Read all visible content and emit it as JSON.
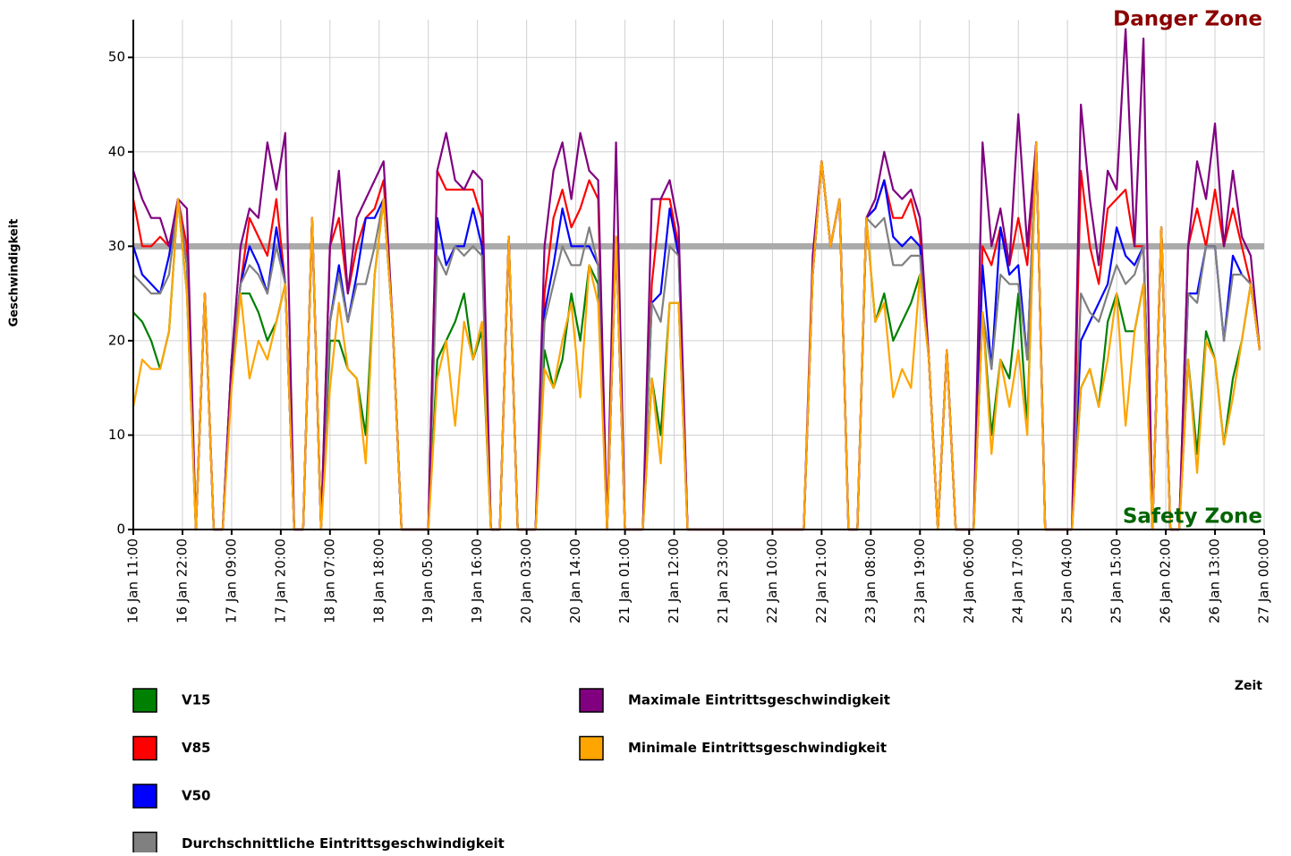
{
  "chart_data": {
    "type": "line",
    "annotations": {
      "danger": "Danger Zone",
      "safety": "Safety Zone"
    },
    "x_label": "Zeit",
    "y_label": "Geschwindigkeit",
    "reference_line": {
      "value": 30,
      "color": "#aaaaaa"
    },
    "grid": true,
    "ylim": [
      0,
      54
    ],
    "yticks": [
      0,
      10,
      20,
      30,
      40,
      50
    ],
    "xlim": [
      "16 Jan 11:00",
      "27 Jan 00:00"
    ],
    "xticks": [
      "16 Jan 11:00",
      "16 Jan 22:00",
      "17 Jan 09:00",
      "17 Jan 20:00",
      "18 Jan 07:00",
      "18 Jan 18:00",
      "19 Jan 05:00",
      "19 Jan 16:00",
      "20 Jan 03:00",
      "20 Jan 14:00",
      "21 Jan 01:00",
      "21 Jan 12:00",
      "21 Jan 23:00",
      "22 Jan 10:00",
      "22 Jan 21:00",
      "23 Jan 08:00",
      "23 Jan 19:00",
      "24 Jan 06:00",
      "24 Jan 17:00",
      "25 Jan 04:00",
      "25 Jan 15:00",
      "26 Jan 02:00",
      "26 Jan 13:00",
      "27 Jan 00:00"
    ],
    "x": [
      "16 Jan 11:00",
      "16 Jan 13:00",
      "16 Jan 15:00",
      "16 Jan 17:00",
      "16 Jan 19:00",
      "16 Jan 21:00",
      "16 Jan 23:00",
      "17 Jan 01:00",
      "17 Jan 03:00",
      "17 Jan 05:00",
      "17 Jan 07:00",
      "17 Jan 09:00",
      "17 Jan 11:00",
      "17 Jan 13:00",
      "17 Jan 15:00",
      "17 Jan 17:00",
      "17 Jan 19:00",
      "17 Jan 21:00",
      "17 Jan 23:00",
      "18 Jan 01:00",
      "18 Jan 03:00",
      "18 Jan 05:00",
      "18 Jan 07:00",
      "18 Jan 09:00",
      "18 Jan 11:00",
      "18 Jan 13:00",
      "18 Jan 15:00",
      "18 Jan 17:00",
      "18 Jan 19:00",
      "18 Jan 21:00",
      "18 Jan 23:00",
      "19 Jan 01:00",
      "19 Jan 03:00",
      "19 Jan 05:00",
      "19 Jan 07:00",
      "19 Jan 09:00",
      "19 Jan 11:00",
      "19 Jan 13:00",
      "19 Jan 15:00",
      "19 Jan 17:00",
      "19 Jan 19:00",
      "19 Jan 21:00",
      "19 Jan 23:00",
      "20 Jan 01:00",
      "20 Jan 03:00",
      "20 Jan 05:00",
      "20 Jan 07:00",
      "20 Jan 09:00",
      "20 Jan 11:00",
      "20 Jan 13:00",
      "20 Jan 15:00",
      "20 Jan 17:00",
      "20 Jan 19:00",
      "20 Jan 21:00",
      "20 Jan 23:00",
      "21 Jan 01:00",
      "21 Jan 03:00",
      "21 Jan 05:00",
      "21 Jan 07:00",
      "21 Jan 09:00",
      "21 Jan 11:00",
      "21 Jan 13:00",
      "21 Jan 15:00",
      "21 Jan 17:00",
      "21 Jan 19:00",
      "21 Jan 21:00",
      "21 Jan 23:00",
      "22 Jan 01:00",
      "22 Jan 03:00",
      "22 Jan 05:00",
      "22 Jan 07:00",
      "22 Jan 09:00",
      "22 Jan 11:00",
      "22 Jan 13:00",
      "22 Jan 15:00",
      "22 Jan 17:00",
      "22 Jan 19:00",
      "22 Jan 21:00",
      "22 Jan 23:00",
      "23 Jan 01:00",
      "23 Jan 03:00",
      "23 Jan 05:00",
      "23 Jan 07:00",
      "23 Jan 09:00",
      "23 Jan 11:00",
      "23 Jan 13:00",
      "23 Jan 15:00",
      "23 Jan 17:00",
      "23 Jan 19:00",
      "23 Jan 21:00",
      "23 Jan 23:00",
      "24 Jan 01:00",
      "24 Jan 03:00",
      "24 Jan 05:00",
      "24 Jan 07:00",
      "24 Jan 09:00",
      "24 Jan 11:00",
      "24 Jan 13:00",
      "24 Jan 15:00",
      "24 Jan 17:00",
      "24 Jan 19:00",
      "24 Jan 21:00",
      "24 Jan 23:00",
      "25 Jan 01:00",
      "25 Jan 03:00",
      "25 Jan 05:00",
      "25 Jan 07:00",
      "25 Jan 09:00",
      "25 Jan 11:00",
      "25 Jan 13:00",
      "25 Jan 15:00",
      "25 Jan 17:00",
      "25 Jan 19:00",
      "25 Jan 21:00",
      "25 Jan 23:00",
      "26 Jan 01:00",
      "26 Jan 03:00",
      "26 Jan 05:00",
      "26 Jan 07:00",
      "26 Jan 09:00",
      "26 Jan 11:00",
      "26 Jan 13:00",
      "26 Jan 15:00",
      "26 Jan 17:00",
      "26 Jan 19:00",
      "26 Jan 21:00",
      "26 Jan 23:00"
    ],
    "series": [
      {
        "name": "V15",
        "color": "#008000",
        "values": [
          23,
          22,
          20,
          17,
          21,
          35,
          25,
          0,
          25,
          0,
          0,
          17,
          25,
          25,
          23,
          20,
          22,
          26,
          0,
          0,
          33,
          0,
          20,
          20,
          17,
          16,
          10,
          27,
          35,
          22,
          0,
          0,
          0,
          0,
          18,
          20,
          22,
          25,
          18,
          21,
          0,
          0,
          31,
          0,
          0,
          0,
          19,
          15,
          18,
          25,
          20,
          28,
          26,
          0,
          31,
          0,
          0,
          0,
          16,
          10,
          24,
          24,
          0,
          0,
          0,
          0,
          0,
          0,
          0,
          0,
          0,
          0,
          0,
          0,
          0,
          0,
          27,
          39,
          30,
          35,
          0,
          0,
          33,
          22,
          25,
          20,
          22,
          24,
          27,
          18,
          0,
          19,
          0,
          0,
          0,
          23,
          10,
          18,
          16,
          25,
          11,
          41,
          0,
          0,
          0,
          0,
          15,
          17,
          13,
          22,
          25,
          21,
          21,
          26,
          0,
          32,
          0,
          0,
          18,
          8,
          21,
          18,
          9,
          16,
          20,
          26,
          19
        ]
      },
      {
        "name": "V85",
        "color": "#ff0000",
        "values": [
          35,
          30,
          30,
          31,
          30,
          35,
          30,
          0,
          25,
          0,
          0,
          18,
          26,
          33,
          31,
          29,
          35,
          26,
          0,
          0,
          33,
          0,
          30,
          33,
          25,
          30,
          33,
          34,
          37,
          22,
          0,
          0,
          0,
          0,
          38,
          36,
          36,
          36,
          36,
          33,
          0,
          0,
          31,
          0,
          0,
          0,
          25,
          33,
          36,
          32,
          34,
          37,
          35,
          0,
          31,
          0,
          0,
          0,
          26,
          35,
          35,
          30,
          0,
          0,
          0,
          0,
          0,
          0,
          0,
          0,
          0,
          0,
          0,
          0,
          0,
          0,
          27,
          39,
          30,
          35,
          0,
          0,
          33,
          34,
          37,
          33,
          33,
          35,
          31,
          18,
          0,
          19,
          0,
          0,
          0,
          30,
          28,
          32,
          28,
          33,
          28,
          41,
          0,
          0,
          0,
          0,
          38,
          30,
          26,
          34,
          35,
          36,
          30,
          30,
          0,
          32,
          0,
          0,
          30,
          34,
          30,
          36,
          30,
          34,
          30,
          26,
          19
        ]
      },
      {
        "name": "V50",
        "color": "#0000ff",
        "values": [
          30,
          27,
          26,
          25,
          29,
          35,
          28,
          0,
          25,
          0,
          0,
          18,
          26,
          30,
          28,
          25,
          32,
          26,
          0,
          0,
          33,
          0,
          22,
          28,
          22,
          27,
          33,
          33,
          35,
          22,
          0,
          0,
          0,
          0,
          33,
          28,
          30,
          30,
          34,
          30,
          0,
          0,
          31,
          0,
          0,
          0,
          23,
          28,
          34,
          30,
          30,
          30,
          28,
          0,
          31,
          0,
          0,
          0,
          24,
          25,
          34,
          29,
          0,
          0,
          0,
          0,
          0,
          0,
          0,
          0,
          0,
          0,
          0,
          0,
          0,
          0,
          27,
          39,
          30,
          35,
          0,
          0,
          33,
          34,
          37,
          31,
          30,
          31,
          30,
          18,
          0,
          19,
          0,
          0,
          0,
          28,
          17,
          32,
          27,
          28,
          18,
          41,
          0,
          0,
          0,
          0,
          20,
          22,
          24,
          26,
          32,
          29,
          28,
          30,
          0,
          32,
          0,
          0,
          25,
          25,
          30,
          30,
          20,
          29,
          27,
          26,
          19
        ]
      },
      {
        "name": "Durchschnittliche Eintrittsgeschwindigkeit",
        "color": "#808080",
        "values": [
          27,
          26,
          25,
          25,
          27,
          35,
          28,
          0,
          25,
          0,
          0,
          18,
          26,
          28,
          27,
          25,
          30,
          26,
          0,
          0,
          33,
          0,
          22,
          27,
          22,
          26,
          26,
          30,
          35,
          22,
          0,
          0,
          0,
          0,
          29,
          27,
          30,
          29,
          30,
          29,
          0,
          0,
          31,
          0,
          0,
          0,
          22,
          26,
          30,
          28,
          28,
          32,
          28,
          0,
          31,
          0,
          0,
          0,
          24,
          22,
          30,
          29,
          0,
          0,
          0,
          0,
          0,
          0,
          0,
          0,
          0,
          0,
          0,
          0,
          0,
          0,
          27,
          39,
          30,
          35,
          0,
          0,
          33,
          32,
          33,
          28,
          28,
          29,
          29,
          18,
          0,
          19,
          0,
          0,
          0,
          23,
          17,
          27,
          26,
          26,
          18,
          41,
          0,
          0,
          0,
          0,
          25,
          23,
          22,
          25,
          28,
          26,
          27,
          30,
          0,
          32,
          0,
          0,
          25,
          24,
          30,
          30,
          20,
          27,
          27,
          26,
          19
        ]
      },
      {
        "name": "Maximale Eintrittsgeschwindigkeit",
        "color": "#800080",
        "values": [
          38,
          35,
          33,
          33,
          30,
          35,
          34,
          0,
          25,
          0,
          0,
          18,
          30,
          34,
          33,
          41,
          36,
          42,
          0,
          0,
          33,
          0,
          30,
          38,
          25,
          33,
          35,
          37,
          39,
          22,
          0,
          0,
          0,
          0,
          38,
          42,
          37,
          36,
          38,
          37,
          0,
          0,
          31,
          0,
          0,
          0,
          30,
          38,
          41,
          35,
          42,
          38,
          37,
          0,
          41,
          0,
          0,
          0,
          35,
          35,
          37,
          32,
          0,
          0,
          0,
          0,
          0,
          0,
          0,
          0,
          0,
          0,
          0,
          0,
          0,
          0,
          29,
          39,
          30,
          35,
          0,
          0,
          33,
          35,
          40,
          36,
          35,
          36,
          33,
          18,
          0,
          19,
          0,
          0,
          0,
          41,
          30,
          34,
          28,
          44,
          30,
          41,
          0,
          0,
          0,
          0,
          45,
          35,
          28,
          38,
          36,
          53,
          30,
          52,
          0,
          32,
          0,
          0,
          30,
          39,
          35,
          43,
          30,
          38,
          31,
          29,
          19
        ]
      },
      {
        "name": "Minimale Eintrittsgeschwindigkeit",
        "color": "#ffa500",
        "values": [
          13,
          18,
          17,
          17,
          21,
          35,
          25,
          0,
          25,
          0,
          0,
          15,
          25,
          16,
          20,
          18,
          22,
          26,
          0,
          0,
          33,
          0,
          15,
          24,
          17,
          16,
          7,
          27,
          35,
          22,
          0,
          0,
          0,
          0,
          16,
          20,
          11,
          22,
          18,
          22,
          0,
          0,
          31,
          0,
          0,
          0,
          17,
          15,
          20,
          24,
          14,
          28,
          24,
          0,
          31,
          0,
          0,
          0,
          16,
          7,
          24,
          24,
          0,
          0,
          0,
          0,
          0,
          0,
          0,
          0,
          0,
          0,
          0,
          0,
          0,
          0,
          27,
          39,
          30,
          35,
          0,
          0,
          33,
          22,
          24,
          14,
          17,
          15,
          27,
          18,
          0,
          19,
          0,
          0,
          0,
          23,
          8,
          18,
          13,
          19,
          10,
          41,
          0,
          0,
          0,
          0,
          15,
          17,
          13,
          18,
          25,
          11,
          21,
          26,
          0,
          32,
          0,
          0,
          18,
          6,
          20,
          18,
          9,
          14,
          20,
          26,
          19
        ]
      }
    ]
  }
}
